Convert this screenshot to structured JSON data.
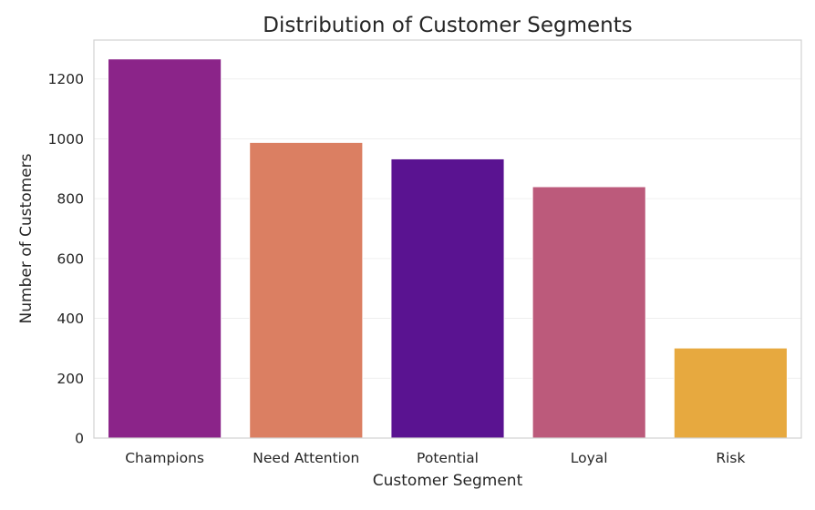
{
  "chart_data": {
    "type": "bar",
    "title": "Distribution of Customer Segments",
    "xlabel": "Customer Segment",
    "ylabel": "Number of Customers",
    "categories": [
      "Champions",
      "Need Attention",
      "Potential",
      "Loyal",
      "Risk"
    ],
    "values": [
      1267,
      988,
      933,
      840,
      301
    ],
    "colors": [
      "#8b2489",
      "#db7f62",
      "#5a1391",
      "#bc5a7b",
      "#e7a93f"
    ],
    "ylim": [
      0,
      1330
    ],
    "yticks": [
      0,
      200,
      400,
      600,
      800,
      1000,
      1200
    ],
    "grid": true,
    "legend": "none"
  }
}
